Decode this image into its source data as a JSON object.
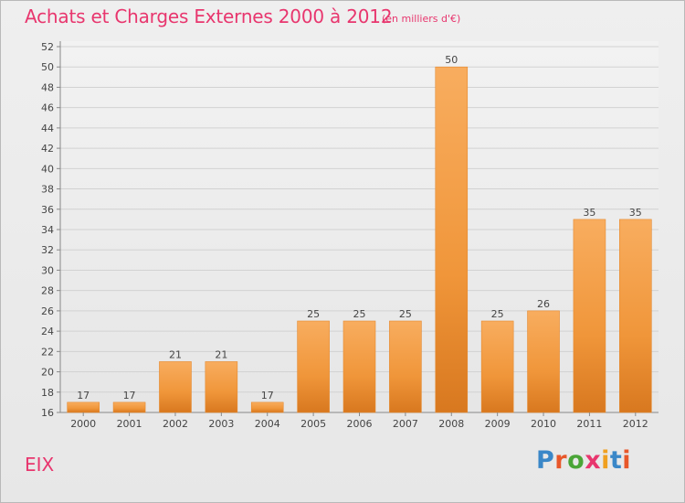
{
  "header": {
    "title": "Achats et Charges Externes 2000 à 2012",
    "unit": "(en milliers d'€)"
  },
  "footer": {
    "commune": "EIX",
    "logo_text": "Proxiti",
    "logo_colors": [
      "#3a87c8",
      "#e8572a",
      "#4aa537",
      "#e8366e",
      "#f0a020",
      "#3a87c8",
      "#e8572a"
    ]
  },
  "colors": {
    "accent": "#e8366e",
    "bar": "#f0963a",
    "bar_light": "#f7ad5c",
    "bar_dark": "#d87a20"
  },
  "chart_data": {
    "type": "bar",
    "title": "Achats et Charges Externes 2000 à 2012",
    "subtitle": "(en milliers d'€)",
    "categories": [
      "2000",
      "2001",
      "2002",
      "2003",
      "2004",
      "2005",
      "2006",
      "2007",
      "2008",
      "2009",
      "2010",
      "2011",
      "2012"
    ],
    "values": [
      17,
      17,
      21,
      21,
      17,
      25,
      25,
      25,
      50,
      25,
      26,
      35,
      35
    ],
    "xlabel": "",
    "ylabel": "",
    "ylim": [
      16,
      52
    ],
    "yticks": [
      16,
      18,
      20,
      22,
      24,
      26,
      28,
      30,
      32,
      34,
      36,
      38,
      40,
      42,
      44,
      46,
      48,
      50,
      52
    ],
    "grid": true,
    "legend": "none"
  }
}
